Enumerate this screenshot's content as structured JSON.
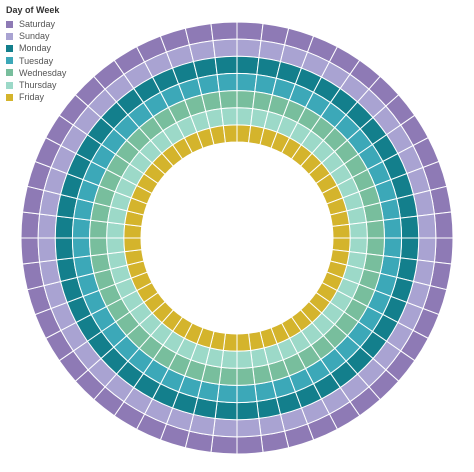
{
  "chart_data": {
    "type": "radial heatmap",
    "legend_title": "Day of Week",
    "legend_placement": "top-left",
    "series": [
      {
        "name": "Saturday",
        "color": "#8E7AB5"
      },
      {
        "name": "Sunday",
        "color": "#A9A3D2"
      },
      {
        "name": "Monday",
        "color": "#137F8C"
      },
      {
        "name": "Tuesday",
        "color": "#3CA8B8"
      },
      {
        "name": "Wednesday",
        "color": "#78BE9D"
      },
      {
        "name": "Thursday",
        "color": "#9CD9C8"
      },
      {
        "name": "Friday",
        "color": "#D4B42C"
      }
    ],
    "segments_per_ring": 52
  }
}
